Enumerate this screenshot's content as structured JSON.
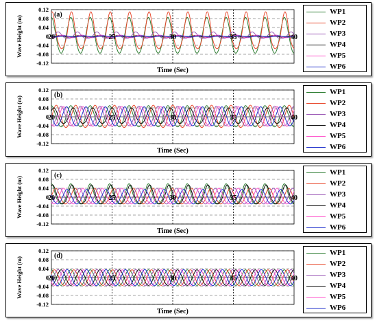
{
  "chart_data": [
    {
      "type": "line",
      "panel_label": "(a)",
      "xlabel": "Time (Sec)",
      "ylabel": "Wave Height (m)",
      "xlim": [
        20,
        40
      ],
      "ylim": [
        -0.12,
        0.12
      ],
      "xticks": [
        20,
        25,
        30,
        35,
        40
      ],
      "yticks": [
        -0.12,
        -0.08,
        -0.04,
        0,
        0.04,
        0.08,
        0.12
      ],
      "ytick_labels": [
        "-0.12",
        "-0.08",
        "-0.04",
        "0",
        "0.04",
        "0.08",
        "0.12"
      ],
      "grid": "dashed-horizontal, dotted-vertical",
      "legend": "right",
      "series": [
        {
          "name": "WP1",
          "color": "#2e7d32",
          "period": 1.6,
          "phase": 0.0,
          "crest": 0.085,
          "trough": -0.075
        },
        {
          "name": "WP2",
          "color": "#e84a2e",
          "period": 1.6,
          "phase": 0.05,
          "crest": 0.11,
          "trough": -0.055
        },
        {
          "name": "WP3",
          "color": "#9b59b6",
          "period": 1.6,
          "phase": 0.55,
          "crest": 0.02,
          "trough": -0.01
        },
        {
          "name": "WP4",
          "color": "#111111",
          "period": 1.6,
          "phase": 0.7,
          "crest": 0.004,
          "trough": -0.004
        },
        {
          "name": "WP5",
          "color": "#ff55cc",
          "period": 1.6,
          "phase": 0.9,
          "crest": 0.006,
          "trough": -0.006
        },
        {
          "name": "WP6",
          "color": "#2233cc",
          "period": 1.6,
          "phase": 1.1,
          "crest": 0.003,
          "trough": -0.003
        }
      ]
    },
    {
      "type": "line",
      "panel_label": "(b)",
      "xlabel": "Time (Sec)",
      "ylabel": "Wave Height (m)",
      "xlim": [
        20,
        40
      ],
      "ylim": [
        -0.12,
        0.12
      ],
      "xticks": [
        20,
        25,
        30,
        35,
        40
      ],
      "yticks": [
        -0.12,
        -0.08,
        -0.04,
        0,
        0.04,
        0.08,
        0.12
      ],
      "ytick_labels": [
        "-0.12",
        "-0.08",
        "-0.04",
        "0",
        "0.04",
        "0.08",
        "0.12"
      ],
      "grid": "dashed-horizontal, dotted-vertical",
      "legend": "right",
      "series": [
        {
          "name": "WP1",
          "color": "#2e7d32",
          "period": 1.6,
          "phase": 0.0,
          "crest": 0.05,
          "trough": -0.045
        },
        {
          "name": "WP2",
          "color": "#e84a2e",
          "period": 1.6,
          "phase": 0.4,
          "crest": 0.052,
          "trough": -0.048
        },
        {
          "name": "WP3",
          "color": "#9b59b6",
          "period": 1.6,
          "phase": 0.8,
          "crest": 0.048,
          "trough": -0.04
        },
        {
          "name": "WP4",
          "color": "#111111",
          "period": 1.6,
          "phase": 0.2,
          "crest": 0.04,
          "trough": -0.03
        },
        {
          "name": "WP5",
          "color": "#ff55cc",
          "period": 1.6,
          "phase": 1.0,
          "crest": 0.046,
          "trough": -0.042
        },
        {
          "name": "WP6",
          "color": "#2233cc",
          "period": 1.6,
          "phase": 1.25,
          "crest": 0.045,
          "trough": -0.04
        }
      ]
    },
    {
      "type": "line",
      "panel_label": "(c)",
      "xlabel": "Time (Sec)",
      "ylabel": "Wave Height (m)",
      "xlim": [
        20,
        40
      ],
      "ylim": [
        -0.12,
        0.12
      ],
      "xticks": [
        20,
        25,
        30,
        35,
        40
      ],
      "yticks": [
        -0.12,
        -0.08,
        -0.04,
        0,
        0.04,
        0.08,
        0.12
      ],
      "ytick_labels": [
        "-0.12",
        "-0.08",
        "-0.04",
        "0",
        "0.04",
        "0.08",
        "0.12"
      ],
      "grid": "dashed-horizontal, dotted-vertical",
      "legend": "right",
      "series": [
        {
          "name": "WP1",
          "color": "#2e7d32",
          "period": 1.6,
          "phase": 0.0,
          "crest": 0.06,
          "trough": -0.03
        },
        {
          "name": "WP2",
          "color": "#e84a2e",
          "period": 1.6,
          "phase": 0.35,
          "crest": 0.04,
          "trough": -0.03
        },
        {
          "name": "WP3",
          "color": "#9b59b6",
          "period": 1.6,
          "phase": 0.7,
          "crest": 0.04,
          "trough": -0.03
        },
        {
          "name": "WP4",
          "color": "#111111",
          "period": 1.6,
          "phase": 0.1,
          "crest": 0.055,
          "trough": -0.03
        },
        {
          "name": "WP5",
          "color": "#ff55cc",
          "period": 1.6,
          "phase": 1.0,
          "crest": 0.04,
          "trough": -0.03
        },
        {
          "name": "WP6",
          "color": "#2233cc",
          "period": 1.6,
          "phase": 1.3,
          "crest": 0.035,
          "trough": -0.03
        }
      ]
    },
    {
      "type": "line",
      "panel_label": "(d)",
      "xlabel": "Time (Sec)",
      "ylabel": "Wave Height (m)",
      "xlim": [
        20,
        40
      ],
      "ylim": [
        -0.12,
        0.12
      ],
      "xticks": [
        20,
        25,
        30,
        35,
        40
      ],
      "yticks": [
        -0.12,
        -0.08,
        -0.04,
        0,
        0.04,
        0.08,
        0.12
      ],
      "ytick_labels": [
        "-0.12",
        "-0.08",
        "-0.04",
        "0",
        "0.04",
        "0.08",
        "0.12"
      ],
      "grid": "dashed-horizontal, dotted-vertical",
      "legend": "right",
      "series": [
        {
          "name": "WP1",
          "color": "#2e7d32",
          "period": 1.6,
          "phase": 0.0,
          "crest": 0.035,
          "trough": -0.035
        },
        {
          "name": "WP2",
          "color": "#e84a2e",
          "period": 1.6,
          "phase": 0.25,
          "crest": 0.035,
          "trough": -0.035
        },
        {
          "name": "WP3",
          "color": "#9b59b6",
          "period": 1.6,
          "phase": 0.55,
          "crest": 0.036,
          "trough": -0.036
        },
        {
          "name": "WP4",
          "color": "#111111",
          "period": 1.6,
          "phase": 0.8,
          "crest": 0.035,
          "trough": -0.035
        },
        {
          "name": "WP5",
          "color": "#ff55cc",
          "period": 1.6,
          "phase": 1.05,
          "crest": 0.035,
          "trough": -0.035
        },
        {
          "name": "WP6",
          "color": "#2233cc",
          "period": 1.6,
          "phase": 1.3,
          "crest": 0.036,
          "trough": -0.036
        }
      ]
    }
  ]
}
